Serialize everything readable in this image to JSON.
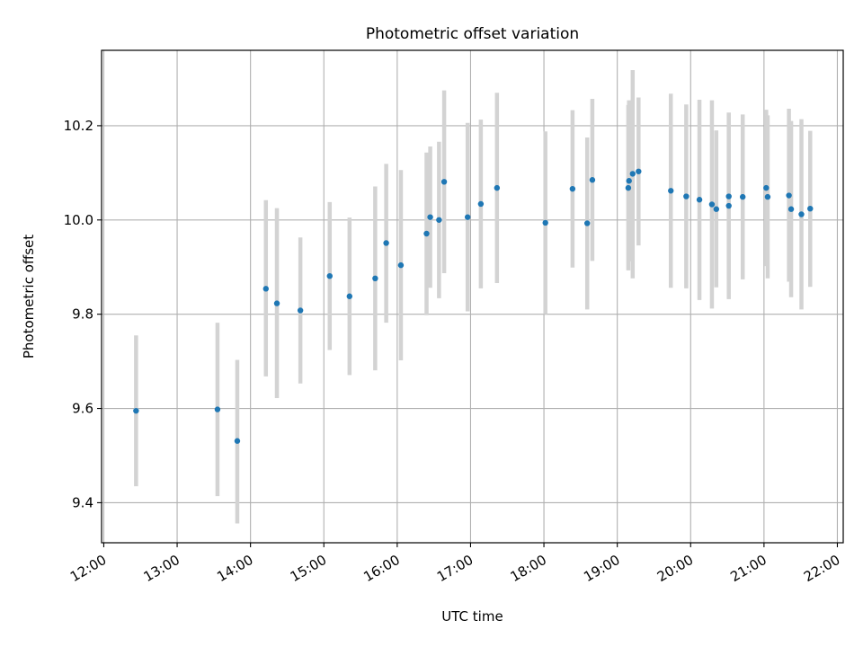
{
  "chart_data": {
    "type": "scatter",
    "title": "Photometric offset variation",
    "xlabel": "UTC time",
    "ylabel": "Photometric offset",
    "xlim": [
      11.97,
      22.08
    ],
    "ylim": [
      9.315,
      10.36
    ],
    "x_ticks": [
      {
        "value": 12,
        "label": "12:00"
      },
      {
        "value": 13,
        "label": "13:00"
      },
      {
        "value": 14,
        "label": "14:00"
      },
      {
        "value": 15,
        "label": "15:00"
      },
      {
        "value": 16,
        "label": "16:00"
      },
      {
        "value": 17,
        "label": "17:00"
      },
      {
        "value": 18,
        "label": "18:00"
      },
      {
        "value": 19,
        "label": "19:00"
      },
      {
        "value": 20,
        "label": "20:00"
      },
      {
        "value": 21,
        "label": "21:00"
      },
      {
        "value": 22,
        "label": "22:00"
      }
    ],
    "y_ticks": [
      {
        "value": 9.4,
        "label": "9.4"
      },
      {
        "value": 9.6,
        "label": "9.6"
      },
      {
        "value": 9.8,
        "label": "9.8"
      },
      {
        "value": 10.0,
        "label": "10.0"
      },
      {
        "value": 10.2,
        "label": "10.2"
      }
    ],
    "grid": true,
    "colors": {
      "point": "#1f77b4",
      "errorbar": "#d3d3d3",
      "grid": "#b0b0b0",
      "axis": "#000000"
    },
    "points": [
      {
        "t": 12.44,
        "y": 9.595,
        "lo": 9.435,
        "hi": 9.755
      },
      {
        "t": 13.55,
        "y": 9.598,
        "lo": 9.414,
        "hi": 9.782
      },
      {
        "t": 13.82,
        "y": 9.531,
        "lo": 9.356,
        "hi": 9.703
      },
      {
        "t": 14.21,
        "y": 9.854,
        "lo": 9.668,
        "hi": 10.042
      },
      {
        "t": 14.36,
        "y": 9.823,
        "lo": 9.622,
        "hi": 10.025
      },
      {
        "t": 14.68,
        "y": 9.808,
        "lo": 9.653,
        "hi": 9.963
      },
      {
        "t": 15.08,
        "y": 9.881,
        "lo": 9.724,
        "hi": 10.038
      },
      {
        "t": 15.35,
        "y": 9.838,
        "lo": 9.671,
        "hi": 10.005
      },
      {
        "t": 15.7,
        "y": 9.876,
        "lo": 9.681,
        "hi": 10.071
      },
      {
        "t": 15.85,
        "y": 9.951,
        "lo": 9.782,
        "hi": 10.119
      },
      {
        "t": 16.05,
        "y": 9.904,
        "lo": 9.702,
        "hi": 10.106
      },
      {
        "t": 16.4,
        "y": 9.971,
        "lo": 9.798,
        "hi": 10.143
      },
      {
        "t": 16.45,
        "y": 10.006,
        "lo": 9.856,
        "hi": 10.156
      },
      {
        "t": 16.57,
        "y": 10.0,
        "lo": 9.834,
        "hi": 10.166
      },
      {
        "t": 16.64,
        "y": 10.081,
        "lo": 9.887,
        "hi": 10.275
      },
      {
        "t": 16.96,
        "y": 10.006,
        "lo": 9.806,
        "hi": 10.206
      },
      {
        "t": 17.14,
        "y": 10.034,
        "lo": 9.855,
        "hi": 10.213
      },
      {
        "t": 17.36,
        "y": 10.068,
        "lo": 9.866,
        "hi": 10.27
      },
      {
        "t": 18.02,
        "y": 9.994,
        "lo": 9.8,
        "hi": 10.188
      },
      {
        "t": 18.39,
        "y": 10.066,
        "lo": 9.899,
        "hi": 10.233
      },
      {
        "t": 18.59,
        "y": 9.993,
        "lo": 9.81,
        "hi": 10.175
      },
      {
        "t": 18.66,
        "y": 10.085,
        "lo": 9.913,
        "hi": 10.257
      },
      {
        "t": 19.15,
        "y": 10.068,
        "lo": 9.893,
        "hi": 10.244
      },
      {
        "t": 19.16,
        "y": 10.083,
        "lo": 9.912,
        "hi": 10.254
      },
      {
        "t": 19.21,
        "y": 10.098,
        "lo": 9.876,
        "hi": 10.318
      },
      {
        "t": 19.29,
        "y": 10.103,
        "lo": 9.946,
        "hi": 10.26
      },
      {
        "t": 19.73,
        "y": 10.062,
        "lo": 9.856,
        "hi": 10.268
      },
      {
        "t": 19.94,
        "y": 10.05,
        "lo": 9.855,
        "hi": 10.245
      },
      {
        "t": 20.12,
        "y": 10.043,
        "lo": 9.83,
        "hi": 10.255
      },
      {
        "t": 20.29,
        "y": 10.033,
        "lo": 9.812,
        "hi": 10.254
      },
      {
        "t": 20.35,
        "y": 10.023,
        "lo": 9.857,
        "hi": 10.19
      },
      {
        "t": 20.52,
        "y": 10.05,
        "lo": 9.874,
        "hi": 10.227
      },
      {
        "t": 20.52,
        "y": 10.03,
        "lo": 9.832,
        "hi": 10.228
      },
      {
        "t": 20.71,
        "y": 10.049,
        "lo": 9.874,
        "hi": 10.224
      },
      {
        "t": 21.03,
        "y": 10.068,
        "lo": 9.902,
        "hi": 10.234
      },
      {
        "t": 21.05,
        "y": 10.049,
        "lo": 9.876,
        "hi": 10.222
      },
      {
        "t": 21.34,
        "y": 10.052,
        "lo": 9.869,
        "hi": 10.236
      },
      {
        "t": 21.37,
        "y": 10.023,
        "lo": 9.836,
        "hi": 10.21
      },
      {
        "t": 21.51,
        "y": 10.012,
        "lo": 9.81,
        "hi": 10.214
      },
      {
        "t": 21.63,
        "y": 10.024,
        "lo": 9.858,
        "hi": 10.189
      }
    ]
  }
}
